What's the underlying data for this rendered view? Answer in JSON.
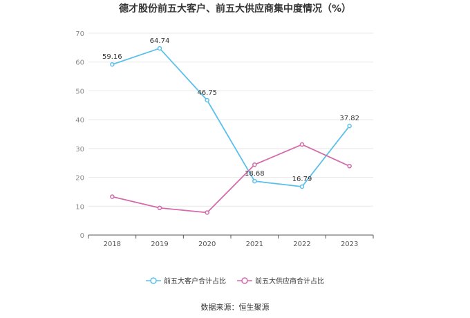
{
  "chart_data": {
    "type": "line",
    "title": "德才股份前五大客户、前五大供应商集中度情况（%）",
    "categories": [
      "2018",
      "2019",
      "2020",
      "2021",
      "2022",
      "2023"
    ],
    "series": [
      {
        "name": "前五大客户合计占比",
        "color": "#5bc0eb",
        "values": [
          59.16,
          64.74,
          46.75,
          18.68,
          16.79,
          37.82
        ],
        "labels": [
          "59.16",
          "64.74",
          "46.75",
          "18.68",
          "16.79",
          "37.82"
        ]
      },
      {
        "name": "前五大供应商合计占比",
        "color": "#d36aab",
        "values": [
          13.3,
          9.4,
          7.8,
          24.4,
          31.4,
          23.9
        ],
        "labels": []
      }
    ],
    "yticks": [
      "0",
      "10",
      "20",
      "30",
      "40",
      "50",
      "60",
      "70"
    ],
    "ylim": [
      0,
      70
    ],
    "grid": true,
    "legend": "bottom-center",
    "source": "数据来源：恒生聚源"
  }
}
